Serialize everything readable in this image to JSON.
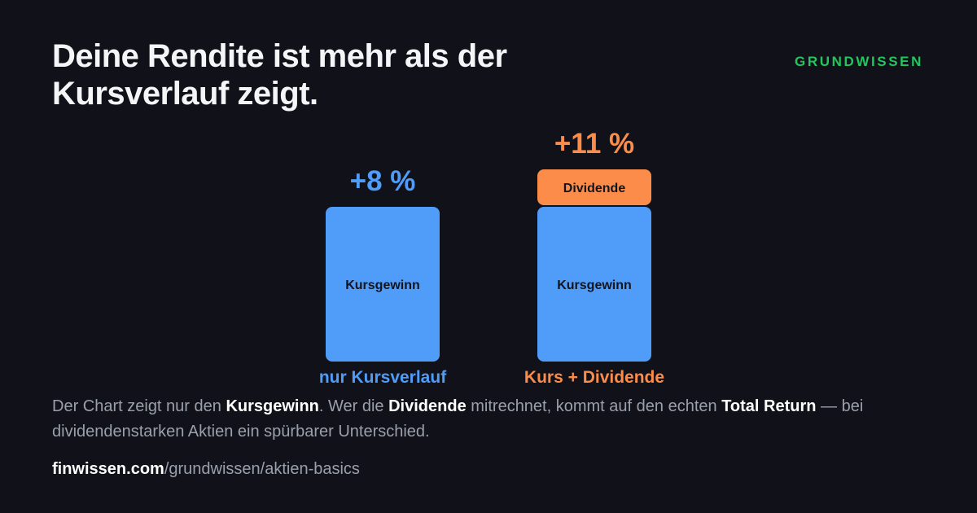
{
  "headline": {
    "line1": "Deine Rendite ist mehr als der",
    "line2": "Kursverlauf zeigt."
  },
  "brand": "GRUNDWISSEN",
  "colors": {
    "background": "#111219",
    "price_blue": "#4f9cf9",
    "dividend_orange": "#fb8c4a",
    "brand_green": "#22c55e",
    "text_muted": "#9aa0ab"
  },
  "chart_data": {
    "type": "bar",
    "stacked": true,
    "categories": [
      "nur Kursverlauf",
      "Kurs + Dividende"
    ],
    "totals": [
      "+8 %",
      "+11 %"
    ],
    "total_values": [
      8,
      11
    ],
    "series": [
      {
        "name": "Kursgewinn",
        "values": [
          8,
          8
        ]
      },
      {
        "name": "Dividende",
        "values": [
          0,
          3
        ]
      }
    ],
    "ylim": [
      0,
      11
    ],
    "grid": false,
    "legend": "none"
  },
  "caption": {
    "p1": "Der Chart zeigt nur den ",
    "b1": "Kursgewinn",
    "p2": ". Wer die ",
    "b2": "Dividende",
    "p3": " mitrechnet, kommt auf den echten ",
    "b3": "Total Return",
    "p4": " — bei dividendenstarken Aktien ein spürbarer Unterschied."
  },
  "url": {
    "domain": "finwissen.com",
    "path": "/grundwissen/aktien-basics"
  }
}
